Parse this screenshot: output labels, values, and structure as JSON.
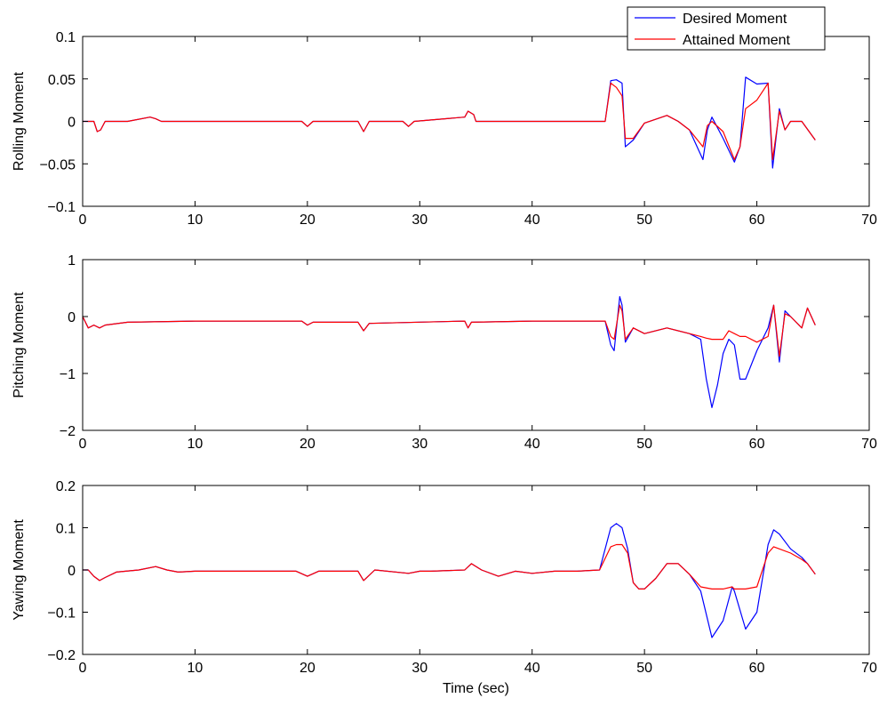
{
  "chart_data": [
    {
      "type": "line",
      "ylabel": "Rolling Moment",
      "xlabel": "",
      "xlim": [
        0,
        70
      ],
      "ylim": [
        -0.1,
        0.1
      ],
      "xticks": [
        "0",
        "10",
        "20",
        "30",
        "40",
        "50",
        "60",
        "70"
      ],
      "yticks": [
        "−0.1",
        "−0.05",
        "0",
        "0.05",
        "0.1"
      ],
      "yticks_values": [
        -0.1,
        -0.05,
        0,
        0.05,
        0.1
      ],
      "grid": false,
      "legend": {
        "placement": "top-right-outside",
        "entries": [
          "Desired Moment",
          "Attained Moment"
        ]
      },
      "series": [
        {
          "name": "Desired Moment",
          "color": "#0000ff",
          "x": [
            0,
            1,
            1.3,
            1.6,
            2,
            4,
            6,
            6.5,
            7,
            10,
            19.5,
            20,
            20.5,
            24.5,
            25,
            25.5,
            28.5,
            29,
            29.5,
            34,
            34.3,
            34.8,
            35,
            40,
            46.5,
            47,
            47.5,
            48,
            48.3,
            49,
            50,
            52,
            53,
            54,
            55.2,
            55.6,
            56,
            57,
            58,
            58.5,
            59,
            60,
            61,
            61.4,
            62,
            62.5,
            63,
            64,
            65.2
          ],
          "y": [
            0,
            0,
            -0.012,
            -0.01,
            0,
            0,
            0.005,
            0.003,
            0,
            0,
            0,
            -0.006,
            0,
            0,
            -0.012,
            0,
            0,
            -0.006,
            0,
            0.005,
            0.012,
            0.008,
            0,
            0,
            0,
            0.048,
            0.049,
            0.045,
            -0.03,
            -0.022,
            -0.002,
            0.007,
            0,
            -0.01,
            -0.045,
            -0.01,
            0.005,
            -0.02,
            -0.048,
            -0.03,
            0.052,
            0.044,
            0.045,
            -0.055,
            0.015,
            -0.01,
            0,
            0,
            -0.022
          ]
        },
        {
          "name": "Attained Moment",
          "color": "#ff0000",
          "x": [
            0,
            1,
            1.3,
            1.6,
            2,
            4,
            6,
            6.5,
            7,
            10,
            19.5,
            20,
            20.5,
            24.5,
            25,
            25.5,
            28.5,
            29,
            29.5,
            34,
            34.3,
            34.8,
            35,
            40,
            46.5,
            47,
            47.5,
            48,
            48.3,
            49,
            50,
            52,
            53,
            54,
            55.2,
            55.6,
            56,
            57,
            58,
            58.5,
            59,
            60,
            61,
            61.4,
            62,
            62.5,
            63,
            64,
            65.2
          ],
          "y": [
            0,
            0,
            -0.012,
            -0.01,
            0,
            0,
            0.005,
            0.003,
            0,
            0,
            0,
            -0.006,
            0,
            0,
            -0.012,
            0,
            0,
            -0.006,
            0,
            0.005,
            0.012,
            0.008,
            0,
            0,
            0,
            0.045,
            0.04,
            0.03,
            -0.02,
            -0.02,
            -0.002,
            0.007,
            0,
            -0.01,
            -0.03,
            -0.005,
            0.0,
            -0.012,
            -0.045,
            -0.03,
            0.015,
            0.025,
            0.045,
            -0.045,
            0.012,
            -0.01,
            0,
            0,
            -0.022
          ]
        }
      ]
    },
    {
      "type": "line",
      "ylabel": "Pitching Moment",
      "xlabel": "",
      "xlim": [
        0,
        70
      ],
      "ylim": [
        -2,
        1
      ],
      "xticks": [
        "0",
        "10",
        "20",
        "30",
        "40",
        "50",
        "60",
        "70"
      ],
      "yticks": [
        "−2",
        "−1",
        "0",
        "1"
      ],
      "yticks_values": [
        -2,
        -1,
        0,
        1
      ],
      "grid": false,
      "series": [
        {
          "name": "Desired Moment",
          "color": "#0000ff",
          "x": [
            0,
            0.5,
            1,
            1.5,
            2,
            4,
            10,
            19.5,
            20,
            20.5,
            24.5,
            25,
            25.5,
            34,
            34.3,
            34.6,
            40,
            46.5,
            47,
            47.3,
            47.8,
            48,
            48.3,
            49,
            50,
            52,
            54,
            55,
            55.5,
            56,
            56.5,
            57,
            57.5,
            58,
            58.5,
            59,
            60,
            61,
            61.5,
            62,
            62.5,
            63,
            64,
            64.5,
            65.2
          ],
          "y": [
            0,
            -0.2,
            -0.15,
            -0.2,
            -0.15,
            -0.1,
            -0.08,
            -0.08,
            -0.15,
            -0.1,
            -0.1,
            -0.25,
            -0.12,
            -0.08,
            -0.2,
            -0.1,
            -0.08,
            -0.08,
            -0.5,
            -0.6,
            0.35,
            0.2,
            -0.45,
            -0.2,
            -0.3,
            -0.2,
            -0.3,
            -0.4,
            -1.1,
            -1.6,
            -1.2,
            -0.65,
            -0.4,
            -0.5,
            -1.1,
            -1.1,
            -0.6,
            -0.2,
            0.2,
            -0.8,
            0.1,
            0.0,
            -0.2,
            0.15,
            -0.15
          ]
        },
        {
          "name": "Attained Moment",
          "color": "#ff0000",
          "x": [
            0,
            0.5,
            1,
            1.5,
            2,
            4,
            10,
            19.5,
            20,
            20.5,
            24.5,
            25,
            25.5,
            34,
            34.3,
            34.6,
            40,
            46.5,
            47,
            47.3,
            47.8,
            48,
            48.3,
            49,
            50,
            52,
            54,
            55,
            55.5,
            56,
            56.5,
            57,
            57.5,
            58,
            58.5,
            59,
            60,
            61,
            61.5,
            62,
            62.5,
            63,
            64,
            64.5,
            65.2
          ],
          "y": [
            0,
            -0.2,
            -0.15,
            -0.2,
            -0.15,
            -0.1,
            -0.08,
            -0.08,
            -0.15,
            -0.1,
            -0.1,
            -0.25,
            -0.12,
            -0.08,
            -0.2,
            -0.1,
            -0.08,
            -0.08,
            -0.35,
            -0.4,
            0.2,
            0.1,
            -0.4,
            -0.2,
            -0.3,
            -0.2,
            -0.3,
            -0.35,
            -0.38,
            -0.4,
            -0.4,
            -0.4,
            -0.25,
            -0.3,
            -0.35,
            -0.35,
            -0.45,
            -0.35,
            0.2,
            -0.7,
            0.05,
            0.0,
            -0.2,
            0.15,
            -0.15
          ]
        }
      ]
    },
    {
      "type": "line",
      "ylabel": "Yawing Moment",
      "xlabel": "Time (sec)",
      "xlim": [
        0,
        70
      ],
      "ylim": [
        -0.2,
        0.2
      ],
      "xticks": [
        "0",
        "10",
        "20",
        "30",
        "40",
        "50",
        "60",
        "70"
      ],
      "yticks": [
        "−0.2",
        "−0.1",
        "0",
        "0.1",
        "0.2"
      ],
      "yticks_values": [
        -0.2,
        -0.1,
        0,
        0.1,
        0.2
      ],
      "grid": false,
      "series": [
        {
          "name": "Desired Moment",
          "color": "#0000ff",
          "x": [
            0,
            0.5,
            1,
            1.5,
            2,
            3,
            5,
            6.5,
            7.5,
            8.5,
            10,
            19,
            20,
            21,
            24.5,
            25,
            26,
            29,
            30,
            31,
            34,
            34.6,
            35.5,
            37,
            38.5,
            40,
            42,
            44,
            46,
            47,
            47.5,
            48,
            48.5,
            49,
            49.5,
            50,
            51,
            52,
            53,
            54,
            55,
            56,
            57,
            57.8,
            58,
            59,
            60,
            61,
            61.5,
            62,
            63,
            64,
            64.5,
            65.2
          ],
          "y": [
            0,
            0,
            -0.015,
            -0.025,
            -0.018,
            -0.005,
            0,
            0.008,
            0,
            -0.005,
            -0.003,
            -0.003,
            -0.015,
            -0.003,
            -0.003,
            -0.025,
            0,
            -0.008,
            -0.003,
            -0.003,
            0,
            0.015,
            0,
            -0.015,
            -0.003,
            -0.008,
            -0.003,
            -0.003,
            0,
            0.1,
            0.11,
            0.1,
            0.05,
            -0.03,
            -0.045,
            -0.045,
            -0.02,
            0.015,
            0.015,
            -0.01,
            -0.05,
            -0.16,
            -0.12,
            -0.04,
            -0.05,
            -0.14,
            -0.1,
            0.06,
            0.095,
            0.085,
            0.05,
            0.03,
            0.015,
            -0.01
          ]
        },
        {
          "name": "Attained Moment",
          "color": "#ff0000",
          "x": [
            0,
            0.5,
            1,
            1.5,
            2,
            3,
            5,
            6.5,
            7.5,
            8.5,
            10,
            19,
            20,
            21,
            24.5,
            25,
            26,
            29,
            30,
            31,
            34,
            34.6,
            35.5,
            37,
            38.5,
            40,
            42,
            44,
            46,
            47,
            47.5,
            48,
            48.5,
            49,
            49.5,
            50,
            51,
            52,
            53,
            54,
            55,
            56,
            57,
            57.8,
            58,
            59,
            60,
            61,
            61.5,
            62,
            63,
            64,
            64.5,
            65.2
          ],
          "y": [
            0,
            0,
            -0.015,
            -0.025,
            -0.018,
            -0.005,
            0,
            0.008,
            0,
            -0.005,
            -0.003,
            -0.003,
            -0.015,
            -0.003,
            -0.003,
            -0.025,
            0,
            -0.008,
            -0.003,
            -0.003,
            0,
            0.015,
            0,
            -0.015,
            -0.003,
            -0.008,
            -0.003,
            -0.003,
            0,
            0.055,
            0.06,
            0.06,
            0.04,
            -0.03,
            -0.045,
            -0.045,
            -0.02,
            0.015,
            0.015,
            -0.01,
            -0.04,
            -0.045,
            -0.045,
            -0.04,
            -0.045,
            -0.045,
            -0.04,
            0.04,
            0.055,
            0.05,
            0.04,
            0.025,
            0.015,
            -0.01
          ]
        }
      ]
    }
  ]
}
